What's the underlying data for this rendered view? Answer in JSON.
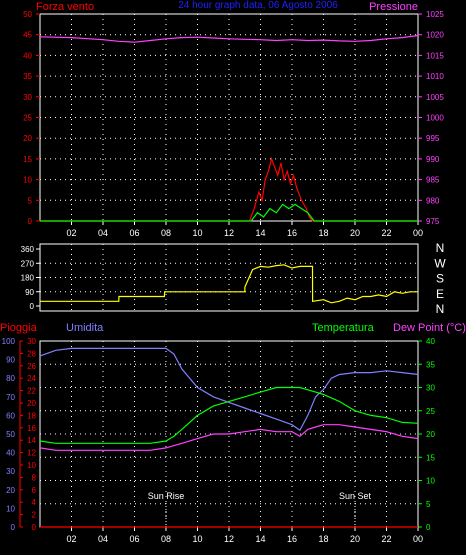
{
  "chart_data": [
    {
      "type": "line",
      "title": "24 hour graph data, 06 Agosto 2006",
      "left_label": "Forza vento",
      "right_label": "Pressione",
      "x_ticks": [
        "02",
        "04",
        "06",
        "08",
        "10",
        "12",
        "14",
        "16",
        "18",
        "20",
        "22",
        "00"
      ],
      "left_axis": {
        "ticks": [
          0,
          5,
          10,
          15,
          20,
          25,
          30,
          35,
          40,
          45,
          50
        ],
        "range": [
          0,
          50
        ]
      },
      "right_axis": {
        "ticks": [
          975,
          980,
          985,
          990,
          995,
          1000,
          1005,
          1010,
          1015,
          1020,
          1025
        ],
        "range": [
          975,
          1025
        ]
      },
      "series": [
        {
          "name": "Pressione",
          "axis": "right",
          "color": "#ff40ff",
          "x": [
            0,
            2,
            4,
            5,
            6,
            7,
            8,
            9,
            10,
            11,
            12,
            13,
            14,
            15,
            16,
            17,
            18,
            19,
            20,
            21,
            22,
            23,
            24
          ],
          "y": [
            1019.5,
            1019.3,
            1018.8,
            1018.4,
            1018.2,
            1018.6,
            1019.0,
            1019.3,
            1019.4,
            1019.2,
            1019.0,
            1018.9,
            1018.8,
            1018.6,
            1018.8,
            1018.6,
            1018.7,
            1018.5,
            1018.4,
            1018.6,
            1019.0,
            1019.3,
            1019.8
          ]
        },
        {
          "name": "",
          "axis": "left",
          "color": "#ff0000",
          "x": [
            0,
            13.3,
            13.6,
            13.9,
            14.1,
            14.3,
            14.5,
            14.7,
            14.9,
            15.1,
            15.3,
            15.5,
            15.7,
            15.9,
            16.1,
            16.3,
            16.6,
            16.9,
            17.1,
            17.3,
            24
          ],
          "y": [
            0,
            0,
            3,
            7,
            5,
            10,
            12,
            15,
            13,
            11,
            14,
            10,
            12,
            9,
            11,
            8,
            5,
            3,
            1,
            0,
            0
          ]
        },
        {
          "name": "",
          "axis": "left",
          "color": "#00ff00",
          "x": [
            0,
            13.4,
            13.8,
            14.2,
            14.6,
            15.0,
            15.4,
            15.8,
            16.2,
            16.6,
            17.0,
            17.4,
            24
          ],
          "y": [
            0,
            0,
            2,
            1,
            3,
            2,
            4,
            3,
            4,
            3,
            2,
            0,
            0
          ]
        }
      ]
    },
    {
      "type": "line",
      "title": "",
      "left_axis": {
        "ticks": [
          0,
          90,
          180,
          270,
          360
        ],
        "range": [
          0,
          360
        ]
      },
      "right_labels": [
        "N",
        "W",
        "S",
        "E",
        "N"
      ],
      "series": [
        {
          "name": "",
          "color": "#ffff00",
          "x": [
            0,
            5,
            5.01,
            7.9,
            7.91,
            13.0,
            13.01,
            13.5,
            14,
            14.5,
            15,
            15.5,
            16,
            16.5,
            17,
            17.3,
            17.31,
            18,
            18.5,
            19,
            19.5,
            20,
            20.5,
            21,
            21.5,
            22,
            22.5,
            23,
            23.5,
            24
          ],
          "y": [
            30,
            30,
            60,
            60,
            90,
            90,
            120,
            230,
            250,
            245,
            255,
            260,
            240,
            250,
            250,
            250,
            30,
            40,
            20,
            30,
            50,
            40,
            60,
            60,
            70,
            60,
            90,
            80,
            90,
            90
          ]
        }
      ]
    },
    {
      "type": "line",
      "title": "",
      "labels": {
        "pioggia": "Pioggia",
        "umidita": "Umidita",
        "temperatura": "Temperatura",
        "dew_point": "Dew Point (°C)"
      },
      "x_ticks": [
        "02",
        "04",
        "06",
        "08",
        "10",
        "12",
        "14",
        "16",
        "18",
        "20",
        "22",
        "00"
      ],
      "umidita_axis": {
        "ticks": [
          0,
          10,
          20,
          30,
          40,
          50,
          60,
          70,
          80,
          90,
          100
        ],
        "range": [
          0,
          100
        ]
      },
      "pioggia_axis": {
        "ticks": [
          0,
          2,
          4,
          6,
          8,
          10,
          12,
          14,
          16,
          18,
          20,
          22,
          24,
          26,
          28,
          30
        ],
        "range": [
          0,
          30
        ]
      },
      "temp_axis": {
        "ticks": [
          0,
          5,
          10,
          15,
          20,
          25,
          30,
          35,
          40
        ],
        "range": [
          0,
          40
        ]
      },
      "annotations": [
        {
          "text": "Sun Rise",
          "x": 8
        },
        {
          "text": "Sun Set",
          "x": 20
        }
      ],
      "series": [
        {
          "name": "Umidita",
          "axis": "umidita",
          "color": "#8080ff",
          "x": [
            0,
            1,
            2,
            3,
            4,
            5,
            6,
            7,
            7.5,
            8,
            8.5,
            9,
            10,
            11,
            12,
            13,
            14,
            15,
            16,
            16.5,
            17,
            17.5,
            18,
            18.5,
            19,
            20,
            21,
            22,
            23,
            24
          ],
          "y": [
            92,
            95,
            96,
            96,
            96,
            96,
            96,
            96,
            96,
            96,
            93,
            85,
            75,
            70,
            67,
            64,
            61,
            58,
            55,
            52,
            60,
            70,
            74,
            80,
            82,
            83,
            83,
            84,
            83,
            82
          ]
        },
        {
          "name": "Temperatura",
          "axis": "temp",
          "color": "#00ff00",
          "x": [
            0,
            1,
            2,
            3,
            4,
            5,
            6,
            7,
            8,
            8.5,
            9,
            10,
            11,
            12,
            13,
            14,
            15,
            16,
            16.5,
            17,
            17.5,
            18,
            19,
            20,
            21,
            22,
            23,
            24
          ],
          "y": [
            18.5,
            18,
            18,
            18,
            18,
            18,
            18,
            18,
            18.5,
            19.5,
            21,
            24,
            26,
            27,
            28,
            29,
            30,
            30,
            30,
            29.5,
            29,
            28.5,
            27,
            25,
            24,
            23.5,
            22.5,
            22.3
          ]
        },
        {
          "name": "Dew Point (°C)",
          "axis": "temp",
          "color": "#ff40ff",
          "x": [
            0,
            1,
            2,
            3,
            4,
            5,
            6,
            7,
            8,
            9,
            10,
            11,
            12,
            13,
            14,
            15,
            16,
            16.5,
            17,
            17.5,
            18,
            19,
            20,
            21,
            22,
            23,
            24
          ],
          "y": [
            17,
            16.5,
            16.5,
            16.5,
            16.5,
            16.5,
            16.5,
            16.5,
            17,
            18,
            19,
            20,
            20,
            20.5,
            21,
            20.5,
            20.5,
            19.5,
            21,
            21.5,
            22,
            22,
            21.5,
            21,
            20.5,
            19.5,
            19
          ]
        },
        {
          "name": "Pioggia",
          "axis": "pioggia",
          "color": "#ff0000",
          "x": [
            0,
            24
          ],
          "y": [
            0,
            0
          ]
        }
      ]
    }
  ]
}
